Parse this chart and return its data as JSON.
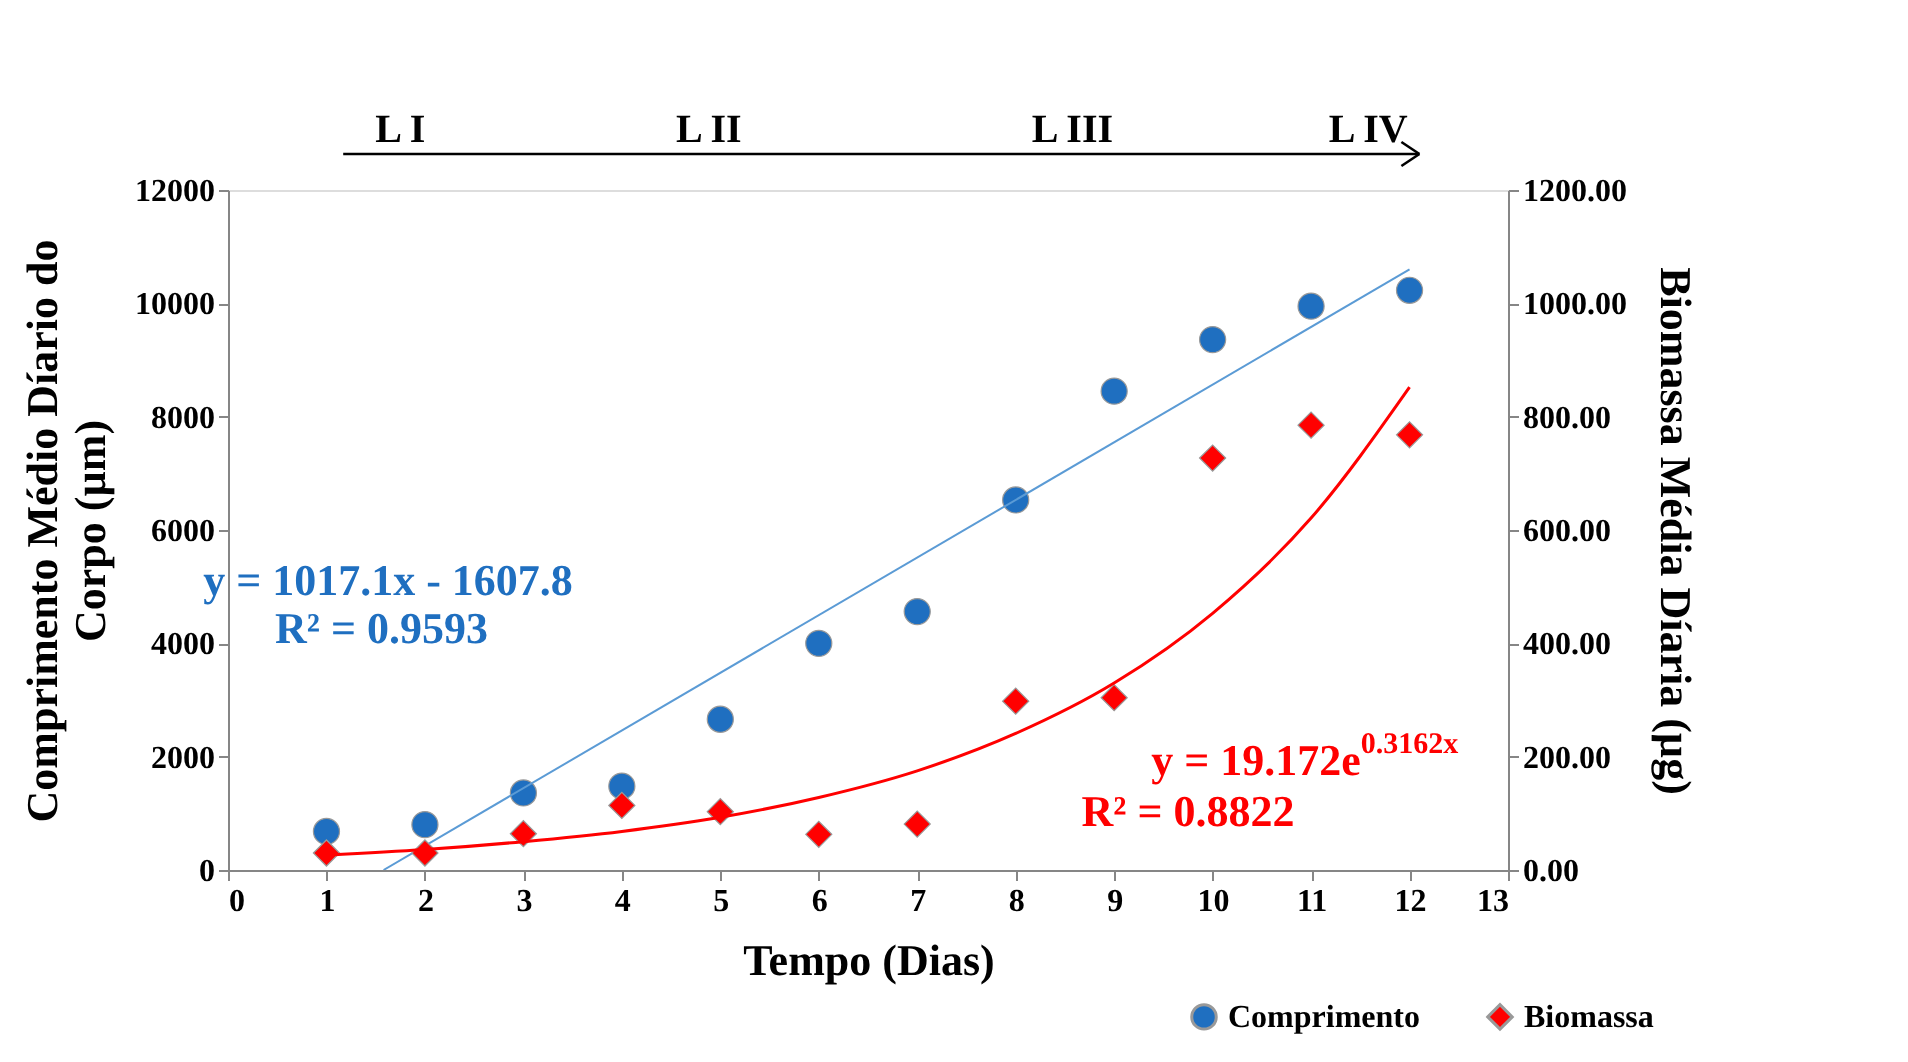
{
  "chart_data": {
    "type": "scatter",
    "xlabel": "Tempo (Dias)",
    "ylabel": "Comprimento  Médio Díario do\nCorpo (µm)",
    "y2label": "Biomassa Média Díaria (µg)",
    "xlim": [
      0,
      13
    ],
    "xticks": [
      0,
      1,
      2,
      3,
      4,
      5,
      6,
      7,
      8,
      9,
      10,
      11,
      12,
      13
    ],
    "ylim": [
      0,
      12000
    ],
    "yticks": [
      0,
      2000,
      4000,
      6000,
      8000,
      10000,
      12000
    ],
    "y2lim": [
      0,
      1200
    ],
    "y2ticks": [
      {
        "value": 0,
        "label": "0.00"
      },
      {
        "value": 200,
        "label": "200.00"
      },
      {
        "value": 400,
        "label": "400.00"
      },
      {
        "value": 600,
        "label": "600.00"
      },
      {
        "value": 800,
        "label": "800.00"
      },
      {
        "value": 1000,
        "label": "1000.00"
      },
      {
        "value": 1200,
        "label": "1200.00"
      }
    ],
    "x": [
      1,
      2,
      3,
      4,
      5,
      6,
      7,
      8,
      9,
      10,
      11,
      12
    ],
    "grid": false,
    "legend": "bottom right",
    "series": [
      {
        "name": "Comprimento",
        "color": "#1f6fc0",
        "marker": "circle",
        "values": [
          680,
          800,
          1360,
          1480,
          2660,
          4000,
          4560,
          6530,
          8450,
          9360,
          9950,
          10230
        ]
      },
      {
        "name": "Biomassa",
        "color": "#ff0000",
        "marker": "diamond",
        "axis": "y2",
        "values": [
          30,
          30,
          64,
          114,
          103,
          63,
          81,
          298,
          304,
          727,
          785,
          768
        ]
      },
      {
        "type": "line",
        "color": "#5b9bd5",
        "line_style": "solid",
        "x": [
          1.58,
          12
        ],
        "values": [
          0,
          10600
        ]
      },
      {
        "type": "line",
        "color": "#ff0000",
        "line_style": "solid",
        "axis": "y2",
        "x": [
          1,
          2,
          3,
          4,
          5,
          6,
          7,
          8,
          9,
          10,
          11,
          12
        ],
        "values": [
          26,
          36,
          50,
          68,
          93,
          128,
          175,
          241,
          330,
          453,
          621,
          852
        ]
      }
    ],
    "annotations": [
      "L I",
      "L II",
      "L III",
      "L IV",
      "y = 1017.1x - 1607.8",
      "R² = 0.9593",
      "y = 19.172e$^{0.3162x}$",
      "R² = 0.8822"
    ]
  }
}
